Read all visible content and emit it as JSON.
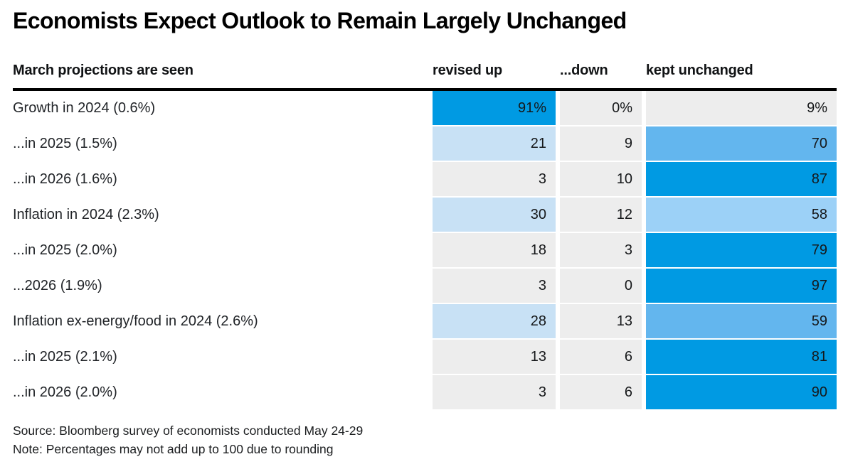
{
  "title": "Economists Expect Outlook to Remain Largely Unchanged",
  "table": {
    "row_header": "March projections are seen",
    "column_headers": [
      "revised up",
      "...down",
      "kept unchanged"
    ],
    "rows": [
      {
        "label": "Growth in 2024 (0.6%)",
        "cells": [
          "91%",
          "0%",
          "9%"
        ],
        "colors": [
          "#009ae3",
          "#ededed",
          "#ededed"
        ]
      },
      {
        "label": "...in 2025 (1.5%)",
        "cells": [
          "21",
          "9",
          "70"
        ],
        "colors": [
          "#c8e1f5",
          "#ededed",
          "#63b6ee"
        ]
      },
      {
        "label": "...in 2026 (1.6%)",
        "cells": [
          "3",
          "10",
          "87"
        ],
        "colors": [
          "#ededed",
          "#ededed",
          "#009ae3"
        ]
      },
      {
        "label": "Inflation in 2024 (2.3%)",
        "cells": [
          "30",
          "12",
          "58"
        ],
        "colors": [
          "#c8e1f5",
          "#ededed",
          "#9cd1f7"
        ]
      },
      {
        "label": "...in 2025 (2.0%)",
        "cells": [
          "18",
          "3",
          "79"
        ],
        "colors": [
          "#ededed",
          "#ededed",
          "#009ae3"
        ]
      },
      {
        "label": "...2026 (1.9%)",
        "cells": [
          "3",
          "0",
          "97"
        ],
        "colors": [
          "#ededed",
          "#ededed",
          "#009ae3"
        ]
      },
      {
        "label": "Inflation ex-energy/food in 2024 (2.6%)",
        "cells": [
          "28",
          "13",
          "59"
        ],
        "colors": [
          "#c8e1f5",
          "#ededed",
          "#63b6ee"
        ]
      },
      {
        "label": "...in 2025 (2.1%)",
        "cells": [
          "13",
          "6",
          "81"
        ],
        "colors": [
          "#ededed",
          "#ededed",
          "#009ae3"
        ]
      },
      {
        "label": "...in 2026 (2.0%)",
        "cells": [
          "3",
          "6",
          "90"
        ],
        "colors": [
          "#ededed",
          "#ededed",
          "#009ae3"
        ]
      }
    ]
  },
  "footer": {
    "source": "Source: Bloomberg survey of economists conducted May 24-29",
    "note": "Note: Percentages may not add up to 100 due to rounding"
  },
  "chart_data": {
    "type": "heatmap",
    "title": "Economists Expect Outlook to Remain Largely Unchanged",
    "row_header": "March projections are seen",
    "columns": [
      "revised up",
      "...down",
      "kept unchanged"
    ],
    "rows": [
      "Growth in 2024 (0.6%)",
      "...in 2025 (1.5%)",
      "...in 2026 (1.6%)",
      "Inflation in 2024 (2.3%)",
      "...in 2025 (2.0%)",
      "...2026 (1.9%)",
      "Inflation ex-energy/food in 2024 (2.6%)",
      "...in 2025 (2.1%)",
      "...in 2026 (2.0%)"
    ],
    "values": [
      [
        91,
        0,
        9
      ],
      [
        21,
        9,
        70
      ],
      [
        3,
        10,
        87
      ],
      [
        30,
        12,
        58
      ],
      [
        18,
        3,
        79
      ],
      [
        3,
        0,
        97
      ],
      [
        28,
        13,
        59
      ],
      [
        13,
        6,
        81
      ],
      [
        3,
        6,
        90
      ]
    ],
    "unit": "percent",
    "value_range": [
      0,
      100
    ],
    "color_scale": {
      "high_blue": "#009ae3",
      "medium_blue": "#63b6ee",
      "light_blue": "#9cd1f7",
      "pale_blue": "#c8e1f5",
      "low_gray": "#ededed"
    },
    "source": "Source: Bloomberg survey of economists conducted May 24-29",
    "note": "Note: Percentages may not add up to 100 due to rounding"
  }
}
